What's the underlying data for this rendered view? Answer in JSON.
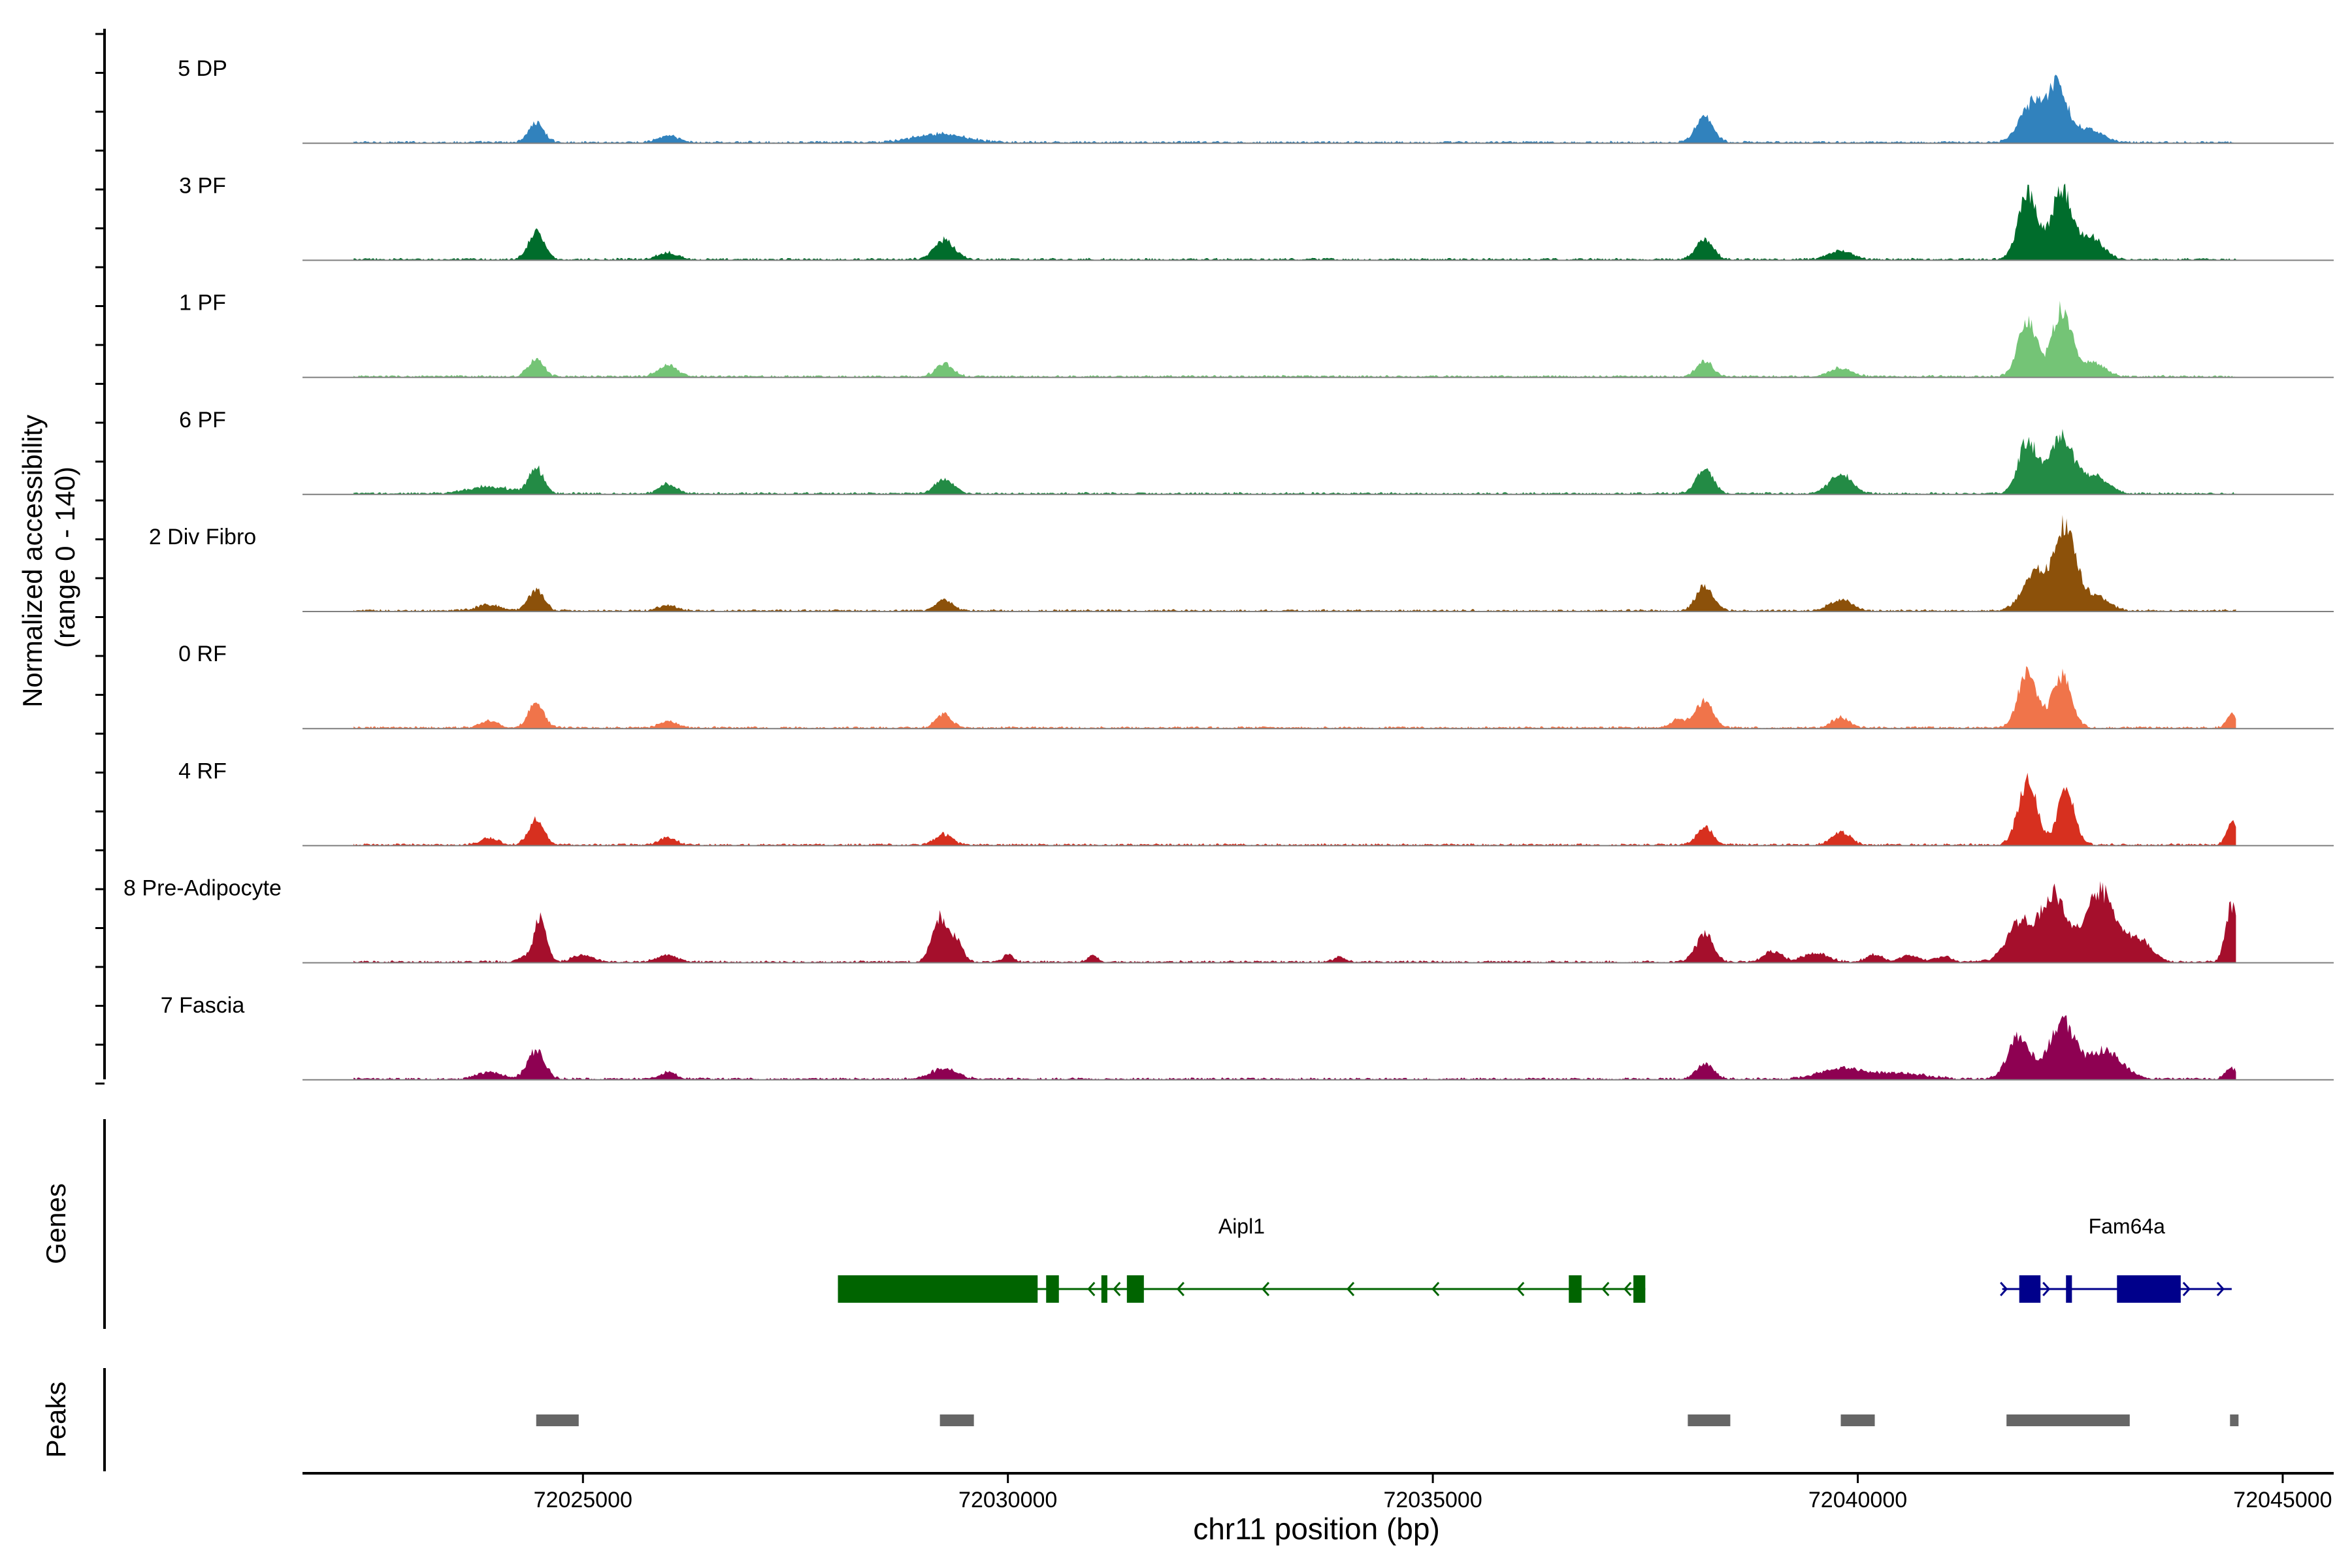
{
  "chart_data": {
    "type": "area",
    "xlabel": "chr11 position (bp)",
    "ylabel_line1": "Normalized accessibility",
    "ylabel_line2": "(range 0 - 140)",
    "ylim": [
      0,
      140
    ],
    "xlim": [
      72021700,
      72045600
    ],
    "x_ticks": [
      72025000,
      72030000,
      72035000,
      72040000,
      72045000
    ],
    "x_tick_labels": [
      "72025000",
      "72030000",
      "72035000",
      "72040000",
      "72045000"
    ],
    "track_range": [
      72022300,
      72044450
    ],
    "tracks": [
      {
        "name": "5 DP",
        "color": "#3182BD",
        "peaks": [
          [
            72024450,
            28,
            90
          ],
          [
            72026000,
            9,
            120
          ],
          [
            72029200,
            12,
            300
          ],
          [
            72038200,
            38,
            100
          ],
          [
            72042050,
            55,
            140
          ],
          [
            72042350,
            80,
            110
          ],
          [
            72042700,
            20,
            160
          ]
        ]
      },
      {
        "name": "3 PF",
        "color": "#006D2C",
        "peaks": [
          [
            72024450,
            40,
            90
          ],
          [
            72026000,
            10,
            120
          ],
          [
            72029250,
            28,
            120
          ],
          [
            72038200,
            28,
            100
          ],
          [
            72039800,
            12,
            140
          ],
          [
            72042000,
            95,
            110
          ],
          [
            72042400,
            100,
            120
          ],
          [
            72042750,
            30,
            140
          ]
        ]
      },
      {
        "name": "1 PF",
        "color": "#74C476",
        "peaks": [
          [
            72024450,
            25,
            90
          ],
          [
            72026000,
            16,
            110
          ],
          [
            72029250,
            18,
            100
          ],
          [
            72038200,
            22,
            90
          ],
          [
            72039800,
            12,
            130
          ],
          [
            72042000,
            80,
            110
          ],
          [
            72042400,
            95,
            110
          ],
          [
            72042750,
            20,
            150
          ]
        ]
      },
      {
        "name": "6 PF",
        "color": "#238B45",
        "peaks": [
          [
            72023900,
            10,
            250
          ],
          [
            72024450,
            35,
            90
          ],
          [
            72026000,
            14,
            100
          ],
          [
            72029250,
            20,
            110
          ],
          [
            72038200,
            34,
            100
          ],
          [
            72039800,
            28,
            130
          ],
          [
            72042000,
            75,
            110
          ],
          [
            72042400,
            80,
            140
          ],
          [
            72042800,
            25,
            150
          ]
        ]
      },
      {
        "name": "2 Div Fibro",
        "color": "#8C510A",
        "peaks": [
          [
            72023900,
            8,
            150
          ],
          [
            72024450,
            30,
            90
          ],
          [
            72026000,
            8,
            100
          ],
          [
            72029250,
            15,
            100
          ],
          [
            72038200,
            35,
            100
          ],
          [
            72039800,
            15,
            130
          ],
          [
            72042100,
            55,
            150
          ],
          [
            72042450,
            120,
            120
          ],
          [
            72042800,
            20,
            150
          ]
        ]
      },
      {
        "name": "0 RF",
        "color": "#F0744A",
        "peaks": [
          [
            72023900,
            10,
            100
          ],
          [
            72024450,
            35,
            90
          ],
          [
            72026000,
            10,
            100
          ],
          [
            72029250,
            20,
            90
          ],
          [
            72037900,
            12,
            100
          ],
          [
            72038200,
            38,
            100
          ],
          [
            72039800,
            15,
            100
          ],
          [
            72042000,
            80,
            110
          ],
          [
            72042400,
            75,
            110
          ],
          [
            72044400,
            20,
            60
          ]
        ]
      },
      {
        "name": "4 RF",
        "color": "#D7301F",
        "peaks": [
          [
            72023900,
            10,
            100
          ],
          [
            72024450,
            35,
            90
          ],
          [
            72026000,
            10,
            100
          ],
          [
            72029250,
            15,
            100
          ],
          [
            72038200,
            25,
            90
          ],
          [
            72039800,
            18,
            110
          ],
          [
            72042000,
            90,
            110
          ],
          [
            72042450,
            75,
            100
          ],
          [
            72044400,
            35,
            60
          ]
        ]
      },
      {
        "name": "8 Pre-Adipocyte",
        "color": "#A50F2C",
        "peaks": [
          [
            72024300,
            8,
            60
          ],
          [
            72024500,
            65,
            70
          ],
          [
            72025000,
            10,
            120
          ],
          [
            72026000,
            10,
            120
          ],
          [
            72029200,
            65,
            90
          ],
          [
            72029400,
            30,
            70
          ],
          [
            72030000,
            10,
            60
          ],
          [
            72031000,
            10,
            60
          ],
          [
            72033900,
            8,
            60
          ],
          [
            72038200,
            40,
            100
          ],
          [
            72039000,
            15,
            100
          ],
          [
            72039500,
            12,
            150
          ],
          [
            72040200,
            10,
            100
          ],
          [
            72040600,
            10,
            100
          ],
          [
            72041000,
            8,
            100
          ],
          [
            72041900,
            55,
            150
          ],
          [
            72042300,
            95,
            150
          ],
          [
            72042850,
            100,
            180
          ],
          [
            72043300,
            30,
            150
          ],
          [
            72044400,
            80,
            70
          ]
        ]
      },
      {
        "name": "7 Fascia",
        "color": "#8E0152",
        "peaks": [
          [
            72023900,
            10,
            150
          ],
          [
            72024450,
            40,
            100
          ],
          [
            72026000,
            10,
            100
          ],
          [
            72029250,
            15,
            150
          ],
          [
            72038200,
            22,
            100
          ],
          [
            72039800,
            15,
            250
          ],
          [
            72040500,
            8,
            300
          ],
          [
            72041900,
            60,
            130
          ],
          [
            72042400,
            80,
            150
          ],
          [
            72042900,
            40,
            200
          ],
          [
            72044400,
            15,
            70
          ]
        ]
      }
    ],
    "genes_label": "Genes",
    "genes": [
      {
        "name": "Aipl1",
        "color": "#006400",
        "start": 72028000,
        "end": 72037500,
        "strand": "-",
        "exons": [
          [
            72028000,
            72030350
          ],
          [
            72030450,
            72030600
          ],
          [
            72031100,
            72031170
          ],
          [
            72031400,
            72031600
          ],
          [
            72036600,
            72036750
          ],
          [
            72037360,
            72037500
          ]
        ],
        "arrows": [
          72030950,
          72031250,
          72032000,
          72033000,
          72034000,
          72035000,
          72036000,
          72037000,
          72037260
        ]
      },
      {
        "name": "Fam64a",
        "color": "#00008B",
        "start": 72041700,
        "end": 72044400,
        "strand": "+",
        "exons": [
          [
            72041900,
            72042150
          ],
          [
            72042450,
            72042520
          ],
          [
            72043050,
            72043800
          ]
        ],
        "arrows": [
          72041750,
          72042250,
          72043900,
          72044300
        ]
      }
    ],
    "peaks_label": "Peaks",
    "peak_color": "#666666",
    "peak_regions": [
      [
        72024450,
        72024950
      ],
      [
        72029200,
        72029600
      ],
      [
        72038000,
        72038500
      ],
      [
        72039800,
        72040200
      ],
      [
        72041750,
        72043200
      ],
      [
        72044380,
        72044480
      ]
    ],
    "grid": false,
    "legend": "none"
  }
}
